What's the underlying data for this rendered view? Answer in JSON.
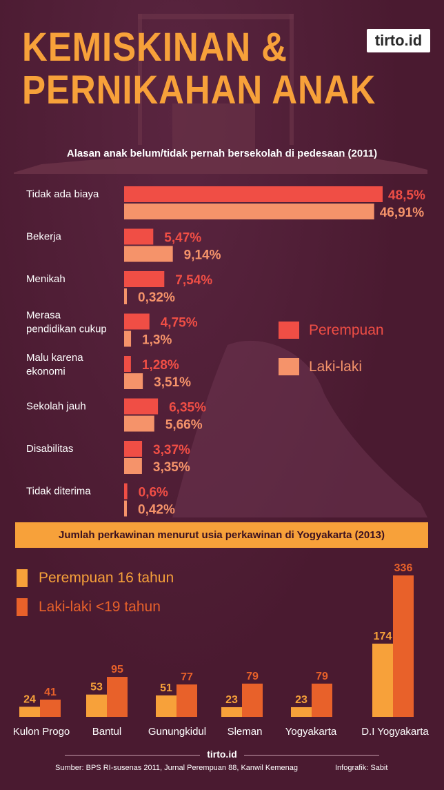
{
  "header": {
    "title_line1": "KEMISKINAN &",
    "title_line2": "PERNIKAHAN ANAK",
    "logo": "tirto.id"
  },
  "colors": {
    "background": "#4a1a30",
    "accent_orange": "#f7a13a",
    "perempuan_red": "#f04e45",
    "lakilaki_salmon": "#f5936a",
    "perempuan_16_orange": "#f7a13a",
    "lakilaki_19_dark_orange": "#e8612a"
  },
  "chart_data": [
    {
      "type": "bar",
      "orientation": "horizontal",
      "title": "Alasan anak belum/tidak pernah bersekolah di pedesaan (2011)",
      "categories": [
        "Tidak ada biaya",
        "Bekerja",
        "Menikah",
        "Merasa pendidikan cukup",
        "Malu karena ekonomi",
        "Sekolah jauh",
        "Disabilitas",
        "Tidak diterima"
      ],
      "category_lines": [
        [
          "Tidak ada biaya"
        ],
        [
          "Bekerja"
        ],
        [
          "Menikah"
        ],
        [
          "Merasa",
          "pendidikan cukup"
        ],
        [
          "Malu karena",
          "ekonomi"
        ],
        [
          "Sekolah jauh"
        ],
        [
          "Disabilitas"
        ],
        [
          "Tidak diterima"
        ]
      ],
      "series": [
        {
          "name": "Perempuan",
          "values": [
            48.5,
            5.47,
            7.54,
            4.75,
            1.28,
            6.35,
            3.37,
            0.6
          ],
          "labels": [
            "48,5%",
            "5,47%",
            "7,54%",
            "4,75%",
            "1,28%",
            "6,35%",
            "3,37%",
            "0,6%"
          ]
        },
        {
          "name": "Laki-laki",
          "values": [
            46.91,
            9.14,
            0.32,
            1.3,
            3.51,
            5.66,
            3.35,
            0.42
          ],
          "labels": [
            "46,91%",
            "9,14%",
            "0,32%",
            "1,3%",
            "3,51%",
            "5,66%",
            "3,35%",
            "0,42%"
          ]
        }
      ],
      "legend": "right",
      "grid": false
    },
    {
      "type": "bar",
      "orientation": "vertical",
      "title": "Jumlah perkawinan menurut usia perkawinan di Yogyakarta (2013)",
      "categories": [
        "Kulon Progo",
        "Bantul",
        "Gunungkidul",
        "Sleman",
        "Yogyakarta",
        "D.I Yogyakarta"
      ],
      "series": [
        {
          "name": "Perempuan 16 tahun",
          "values": [
            24,
            53,
            51,
            23,
            23,
            174
          ]
        },
        {
          "name": "Laki-laki <19 tahun",
          "values": [
            41,
            95,
            77,
            79,
            79,
            336
          ]
        }
      ],
      "legend": "top-left",
      "grid": false
    }
  ],
  "footer": {
    "logo": "tirto.id",
    "source": "Sumber:  BPS RI-susenas 2011, Jurnal Perempuan 88, Kanwil Kemenag",
    "credit": "Infografik: Sabit"
  }
}
